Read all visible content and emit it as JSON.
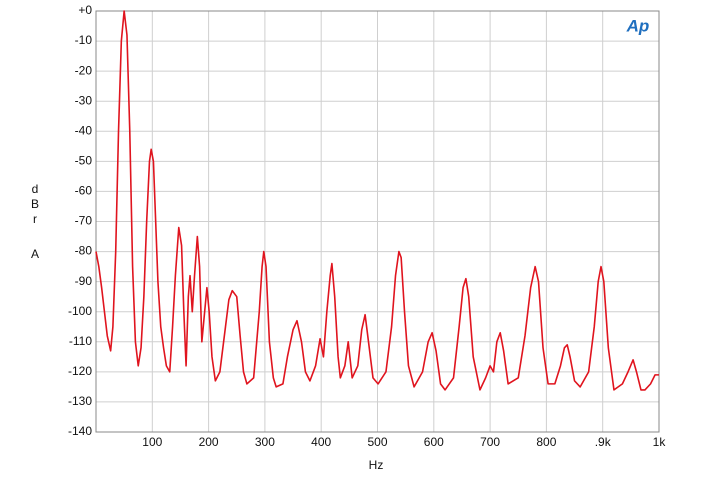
{
  "chart_data": {
    "type": "line",
    "logo": "Ap",
    "x_label": "Hz",
    "y_label": [
      "dBr",
      "A"
    ],
    "xlim": [
      0,
      1000
    ],
    "ylim": [
      -140,
      0
    ],
    "xticks": [
      0,
      100,
      200,
      300,
      400,
      500,
      600,
      700,
      800,
      {
        "value": 900,
        "label": ".9k"
      },
      {
        "value": 1000,
        "label": "1k"
      }
    ],
    "yticks": [
      {
        "value": 0,
        "label": "+0"
      },
      -10,
      -20,
      -30,
      -40,
      -50,
      -60,
      -70,
      -80,
      -90,
      -100,
      -110,
      -120,
      -130,
      -140
    ],
    "grid": true,
    "series": [
      {
        "color": "#e0141e",
        "x": [
          0,
          5,
          10,
          15,
          20,
          26,
          30,
          35,
          40,
          45,
          50,
          55,
          60,
          65,
          70,
          75,
          80,
          85,
          90,
          95,
          98,
          102,
          106,
          110,
          115,
          120,
          125,
          131,
          136,
          141,
          147,
          152,
          156,
          160,
          164,
          167,
          171,
          175,
          180,
          184,
          188,
          193,
          197,
          201,
          206,
          212,
          220,
          230,
          236,
          242,
          250,
          256,
          262,
          268,
          280,
          290,
          295,
          298,
          302,
          308,
          315,
          320,
          332,
          340,
          350,
          357,
          365,
          372,
          380,
          390,
          398,
          404,
          410,
          416,
          419,
          424,
          430,
          434,
          442,
          448,
          455,
          465,
          472,
          478,
          484,
          492,
          501,
          515,
          525,
          532,
          538,
          542,
          548,
          555,
          565,
          580,
          590,
          597,
          604,
          612,
          620,
          635,
          645,
          652,
          657,
          662,
          670,
          682,
          692,
          700,
          706,
          712,
          718,
          724,
          732,
          750,
          762,
          772,
          780,
          786,
          794,
          803,
          815,
          825,
          832,
          837,
          842,
          850,
          860,
          875,
          885,
          892,
          897,
          902,
          910,
          920,
          935,
          945,
          954,
          960,
          968,
          975,
          985,
          993,
          1000
        ],
        "values": [
          -80,
          -85,
          -92,
          -100,
          -108,
          -113,
          -105,
          -80,
          -40,
          -10,
          0,
          -8,
          -40,
          -85,
          -110,
          -118,
          -112,
          -95,
          -70,
          -50,
          -46,
          -50,
          -70,
          -90,
          -105,
          -112,
          -118,
          -120,
          -105,
          -88,
          -72,
          -78,
          -100,
          -118,
          -95,
          -88,
          -100,
          -88,
          -75,
          -85,
          -110,
          -100,
          -92,
          -100,
          -115,
          -123,
          -120,
          -105,
          -96,
          -93,
          -95,
          -108,
          -120,
          -124,
          -122,
          -100,
          -85,
          -80,
          -85,
          -110,
          -122,
          -125,
          -124,
          -115,
          -106,
          -103,
          -110,
          -120,
          -123,
          -118,
          -109,
          -115,
          -100,
          -88,
          -84,
          -95,
          -115,
          -122,
          -118,
          -110,
          -122,
          -118,
          -106,
          -101,
          -110,
          -122,
          -124,
          -120,
          -105,
          -88,
          -80,
          -82,
          -100,
          -118,
          -125,
          -120,
          -110,
          -107,
          -113,
          -124,
          -126,
          -122,
          -105,
          -92,
          -89,
          -95,
          -115,
          -126,
          -122,
          -118,
          -120,
          -110,
          -107,
          -113,
          -124,
          -122,
          -108,
          -92,
          -85,
          -90,
          -112,
          -124,
          -124,
          -118,
          -112,
          -111,
          -115,
          -123,
          -125,
          -120,
          -105,
          -90,
          -85,
          -90,
          -112,
          -126,
          -124,
          -120,
          -116,
          -120,
          -126,
          -126,
          -124,
          -121,
          -121
        ]
      }
    ]
  }
}
